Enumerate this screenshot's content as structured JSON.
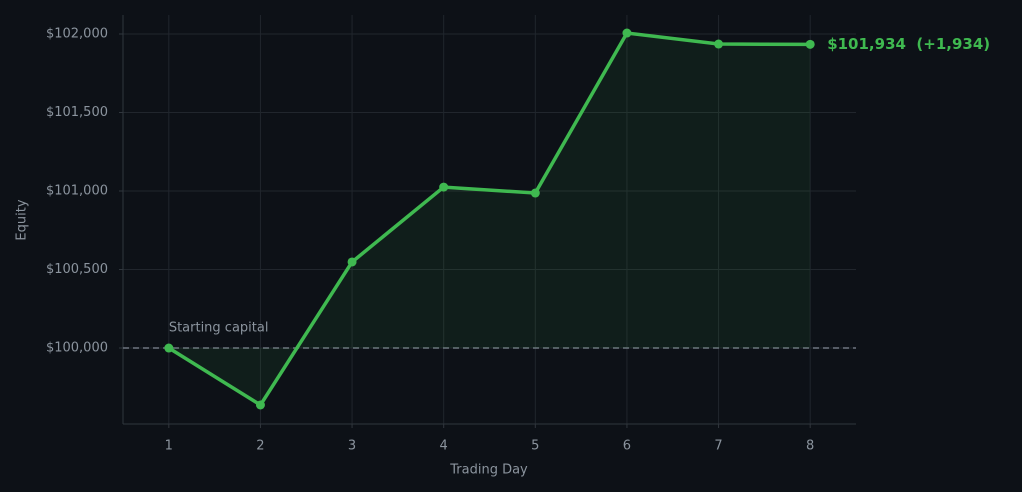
{
  "chart_data": {
    "type": "line",
    "xlabel": "Trading Day",
    "ylabel": "Equity",
    "x": [
      1,
      2,
      3,
      4,
      5,
      6,
      7,
      8
    ],
    "series": [
      {
        "name": "Equity",
        "color": "#3fb950",
        "values": [
          100000,
          99637,
          100548,
          101025,
          100987,
          102006,
          101936,
          101934
        ]
      }
    ],
    "xlim": [
      0.5,
      8.5
    ],
    "xticks": [
      1,
      2,
      3,
      4,
      5,
      6,
      7,
      8
    ],
    "ylim": [
      99516,
      102121
    ],
    "yticks": [
      {
        "value": 100000,
        "label": "$100,000"
      },
      {
        "value": 100500,
        "label": "$100,500"
      },
      {
        "value": 101000,
        "label": "$101,000"
      },
      {
        "value": 101500,
        "label": "$101,500"
      },
      {
        "value": 102000,
        "label": "$102,000"
      }
    ],
    "grid": true,
    "reference_line": {
      "value": 100000,
      "label": "Starting capital"
    },
    "end_label": "$101,934  (+1,934)"
  }
}
